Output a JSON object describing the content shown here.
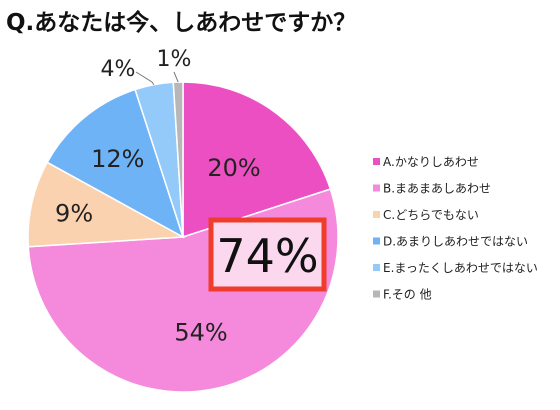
{
  "chart_data": {
    "type": "pie",
    "title": "Q.あなたは今、しあわせですか？",
    "legend_position": "right",
    "slices": [
      {
        "name": "A.かなりしあわせ",
        "value": 20,
        "label": "20%",
        "color": "#ec4fc2"
      },
      {
        "name": "B.まあまあしあわせ",
        "value": 54,
        "label": "54%",
        "color": "#f589dc"
      },
      {
        "name": "C.どちらでもない",
        "value": 9,
        "label": "9%",
        "color": "#fbd2b0"
      },
      {
        "name": "D.あまりしあわせではない",
        "value": 12,
        "label": "12%",
        "color": "#6fb3f7"
      },
      {
        "name": "E.まったくしあわせではない",
        "value": 4,
        "label": "4%",
        "color": "#93caf9"
      },
      {
        "name": "F.その 他",
        "value": 1,
        "label": "1%",
        "color": "#b7b7b7"
      }
    ],
    "callout": {
      "label": "74%",
      "border_color": "#f03c2a",
      "fill_color": "#fbd8ee"
    }
  }
}
